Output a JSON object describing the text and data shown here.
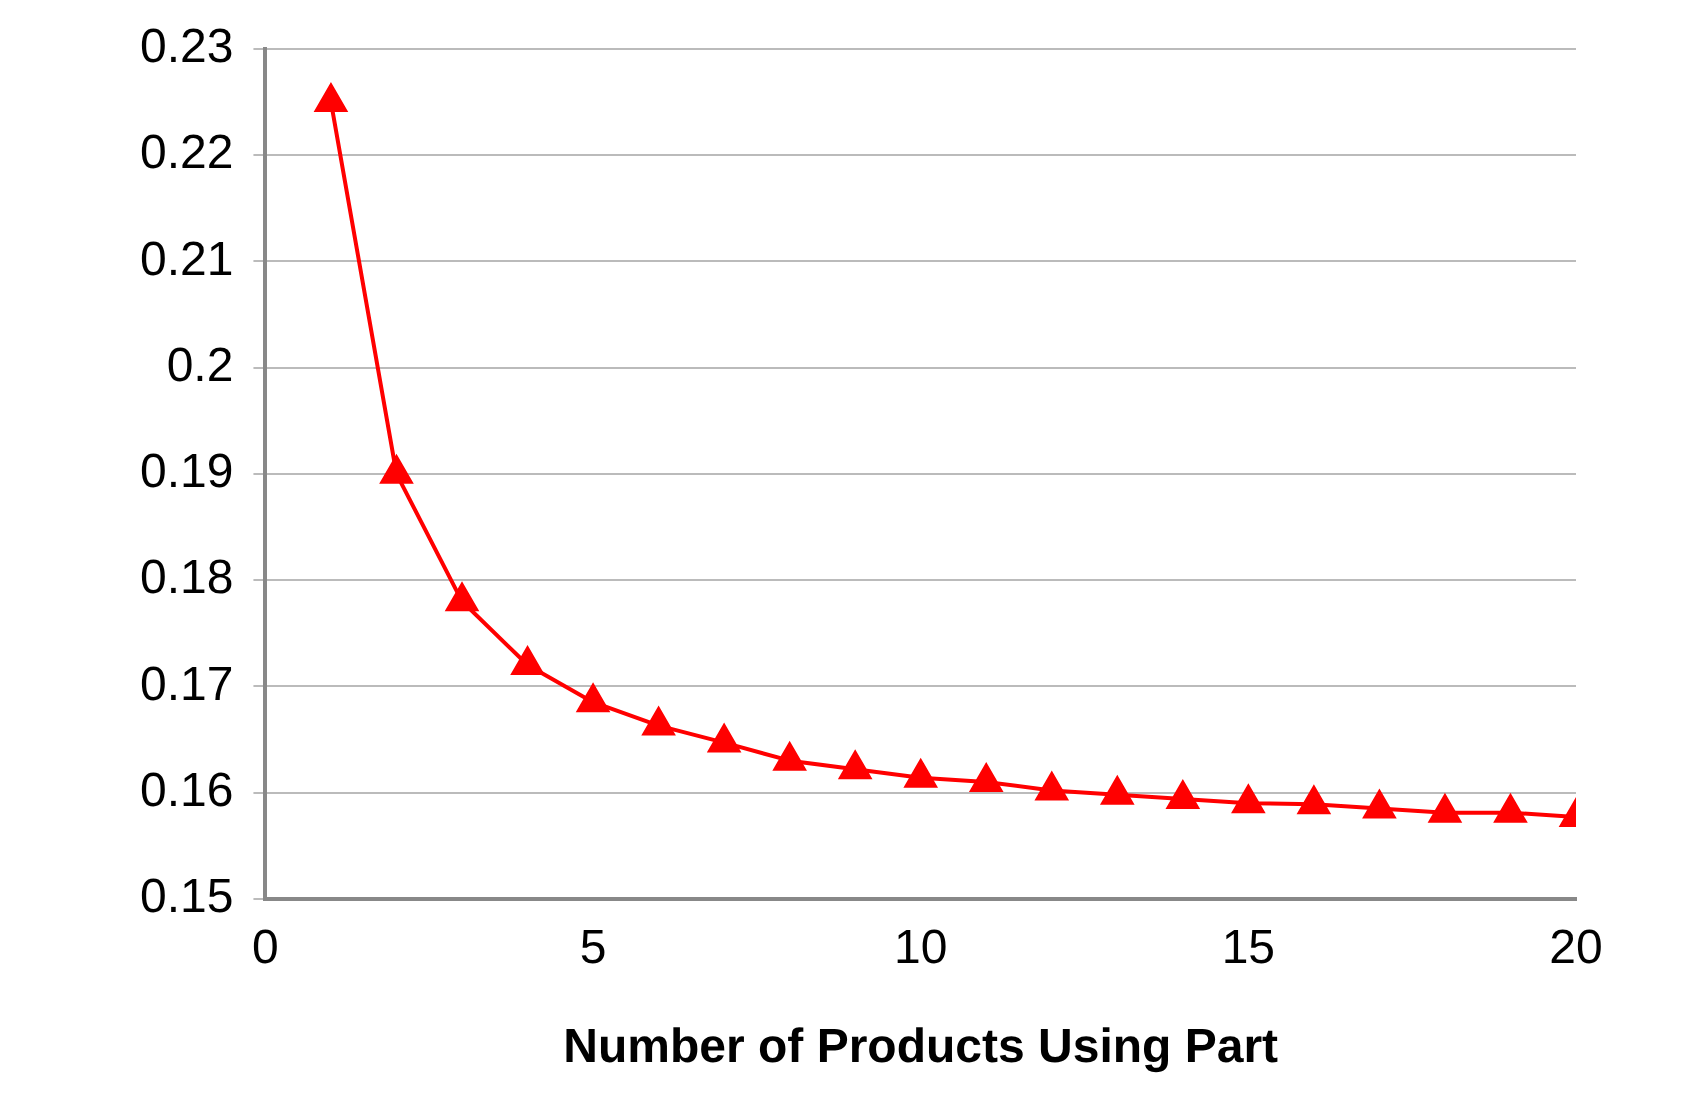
{
  "chart_data": {
    "type": "line",
    "xlabel": "Number of Products Using Part",
    "x": [
      1,
      2,
      3,
      4,
      5,
      6,
      7,
      8,
      9,
      10,
      11,
      12,
      13,
      14,
      15,
      16,
      17,
      18,
      19,
      20
    ],
    "series": [
      {
        "color": "#ff0000",
        "values": [
          0.225,
          0.19,
          0.178,
          0.172,
          0.1685,
          0.1663,
          0.1647,
          0.163,
          0.1622,
          0.1614,
          0.161,
          0.1602,
          0.1598,
          0.1594,
          0.159,
          0.1589,
          0.1585,
          0.1581,
          0.1581,
          0.1577
        ]
      }
    ],
    "xlim": [
      0,
      20
    ],
    "xticks": [
      0,
      5,
      10,
      15,
      20
    ],
    "ylim": [
      0.15,
      0.23
    ],
    "yticks": [
      0.15,
      0.16,
      0.17,
      0.18,
      0.19,
      0.2,
      0.21,
      0.22,
      0.23
    ],
    "grid": "y",
    "legend": false,
    "marker": "triangle",
    "line_style": "solid"
  }
}
